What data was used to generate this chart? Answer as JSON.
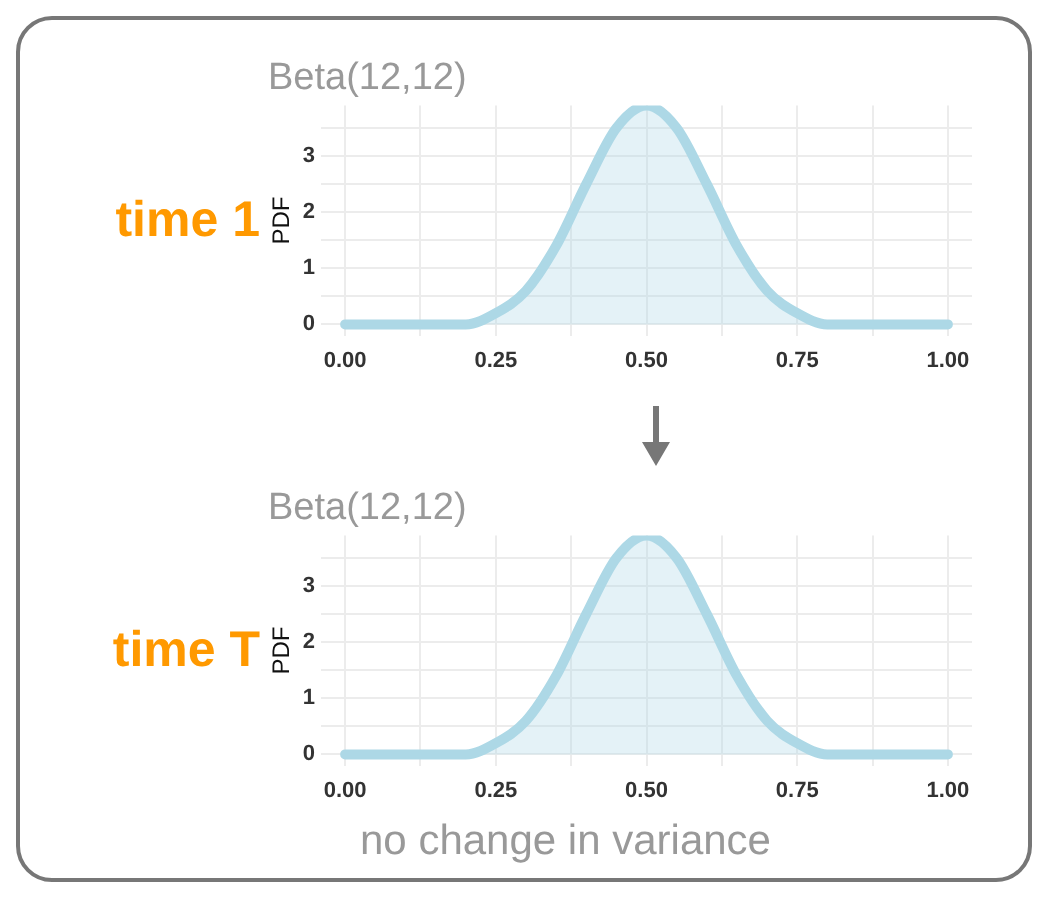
{
  "chart_data": [
    {
      "type": "area",
      "title": "Beta(12,12)",
      "ylabel": "PDF",
      "annotations": [
        "time 1"
      ],
      "x": [
        0,
        0.05,
        0.1,
        0.15,
        0.2,
        0.25,
        0.3,
        0.35,
        0.4,
        0.45,
        0.5,
        0.55,
        0.6,
        0.65,
        0.7,
        0.75,
        0.8,
        0.85,
        0.9,
        0.95,
        1
      ],
      "series": [
        {
          "color": "#add8e6",
          "values": [
            0,
            0,
            0,
            0,
            0,
            0.2,
            0.6,
            1.4,
            2.5,
            3.5,
            3.9,
            3.5,
            2.5,
            1.4,
            0.6,
            0.2,
            0,
            0,
            0,
            0,
            0
          ]
        }
      ],
      "xlim": [
        -0.04,
        1.04
      ],
      "xticks": [
        {
          "value": 0,
          "label": "0.00"
        },
        {
          "value": 0.125,
          "label": null
        },
        {
          "value": 0.25,
          "label": "0.25"
        },
        {
          "value": 0.375,
          "label": null
        },
        {
          "value": 0.5,
          "label": "0.50"
        },
        {
          "value": 0.625,
          "label": null
        },
        {
          "value": 0.75,
          "label": "0.75"
        },
        {
          "value": 0.875,
          "label": null
        },
        {
          "value": 1,
          "label": "1.00"
        }
      ],
      "ylim": [
        -0.2,
        3.9
      ],
      "yticks": [
        0,
        {
          "value": 0.5,
          "label": null
        },
        1,
        {
          "value": 1.5,
          "label": null
        },
        2,
        {
          "value": 2.5,
          "label": null
        },
        3,
        {
          "value": 3.5,
          "label": null
        }
      ],
      "grid": true,
      "legend": false
    },
    {
      "type": "area",
      "title": "Beta(12,12)",
      "ylabel": "PDF",
      "annotations": [
        "time T",
        "no change in variance"
      ],
      "x": [
        0,
        0.05,
        0.1,
        0.15,
        0.2,
        0.25,
        0.3,
        0.35,
        0.4,
        0.45,
        0.5,
        0.55,
        0.6,
        0.65,
        0.7,
        0.75,
        0.8,
        0.85,
        0.9,
        0.95,
        1
      ],
      "series": [
        {
          "color": "#add8e6",
          "values": [
            0,
            0,
            0,
            0,
            0,
            0.2,
            0.6,
            1.4,
            2.5,
            3.5,
            3.9,
            3.5,
            2.5,
            1.4,
            0.6,
            0.2,
            0,
            0,
            0,
            0,
            0
          ]
        }
      ],
      "xlim": [
        -0.04,
        1.04
      ],
      "xticks": [
        {
          "value": 0,
          "label": "0.00"
        },
        {
          "value": 0.125,
          "label": null
        },
        {
          "value": 0.25,
          "label": "0.25"
        },
        {
          "value": 0.375,
          "label": null
        },
        {
          "value": 0.5,
          "label": "0.50"
        },
        {
          "value": 0.625,
          "label": null
        },
        {
          "value": 0.75,
          "label": "0.75"
        },
        {
          "value": 0.875,
          "label": null
        },
        {
          "value": 1,
          "label": "1.00"
        }
      ],
      "ylim": [
        -0.2,
        3.9
      ],
      "yticks": [
        0,
        {
          "value": 0.5,
          "label": null
        },
        1,
        {
          "value": 1.5,
          "label": null
        },
        2,
        {
          "value": 2.5,
          "label": null
        },
        3,
        {
          "value": 3.5,
          "label": null
        }
      ],
      "grid": true,
      "legend": false
    }
  ]
}
